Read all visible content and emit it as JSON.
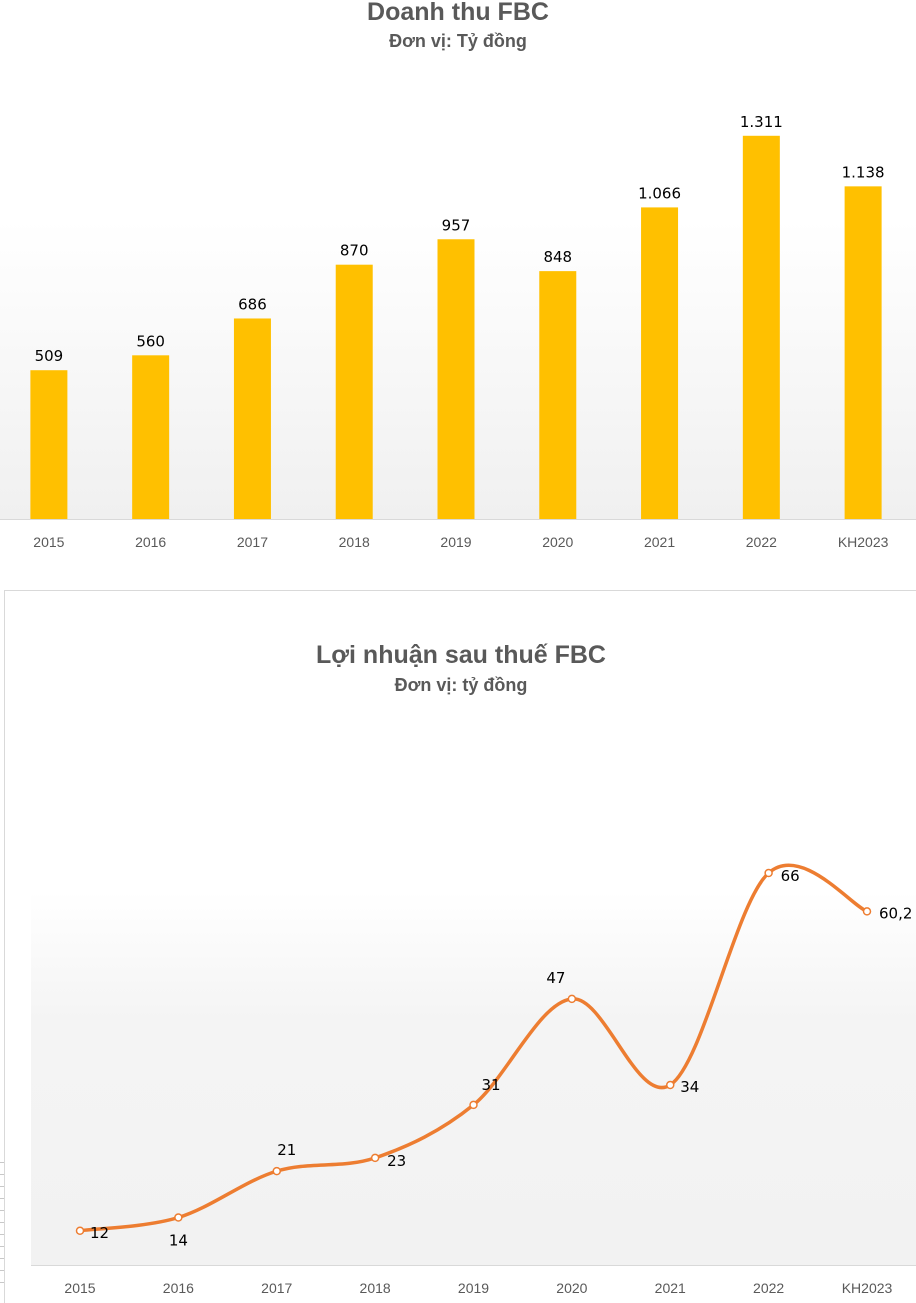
{
  "chart_data": [
    {
      "type": "bar",
      "title": "Doanh thu FBC",
      "subtitle": "Đơn vị: Tỷ đồng",
      "categories": [
        "2015",
        "2016",
        "2017",
        "2018",
        "2019",
        "2020",
        "2021",
        "2022",
        "KH2023"
      ],
      "values": [
        509,
        560,
        686,
        870,
        957,
        848,
        1066,
        1311,
        1138
      ],
      "data_labels": [
        "509",
        "560",
        "686",
        "870",
        "957",
        "848",
        "1.066",
        "1.311",
        "1.138"
      ],
      "ylim": [
        0,
        1400
      ],
      "grid": false,
      "legend": "none",
      "colors": {
        "bar": "#FFC000",
        "axis": "#d9d9d9",
        "text": "#595959"
      }
    },
    {
      "type": "line",
      "title": "Lợi nhuận sau thuế FBC",
      "subtitle": "Đơn vị: tỷ đồng",
      "categories": [
        "2015",
        "2016",
        "2017",
        "2018",
        "2019",
        "2020",
        "2021",
        "2022",
        "KH2023"
      ],
      "values": [
        12,
        14,
        21,
        23,
        31,
        47,
        34,
        66,
        60.2
      ],
      "data_labels": [
        "12",
        "14",
        "21",
        "23",
        "31",
        "47",
        "34",
        "66",
        "60,2"
      ],
      "ylim": [
        0,
        80
      ],
      "grid": false,
      "legend": "none",
      "smooth": true,
      "colors": {
        "line": "#ED7D31",
        "marker_fill": "#ffffff",
        "axis": "#d9d9d9",
        "text": "#595959"
      }
    }
  ]
}
